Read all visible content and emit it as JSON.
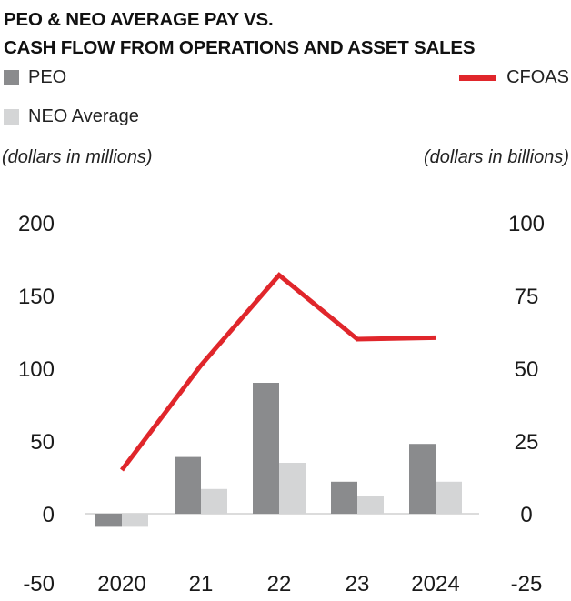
{
  "chart_data": {
    "type": "bar+line",
    "title_lines": [
      "PEO & NEO AVERAGE PAY VS.",
      "CASH FLOW FROM OPERATIONS AND ASSET SALES"
    ],
    "left_unit": "(dollars in millions)",
    "right_unit": "(dollars in billions)",
    "categories": [
      "2020",
      "21",
      "22",
      "23",
      "2024"
    ],
    "left_axis": {
      "min": -50,
      "max": 200,
      "ticks": [
        200,
        150,
        100,
        50,
        0,
        -50
      ]
    },
    "right_axis": {
      "min": -25,
      "max": 100,
      "ticks": [
        100,
        75,
        50,
        25,
        0,
        -25
      ]
    },
    "series": [
      {
        "name": "PEO",
        "type": "bar",
        "axis": "left",
        "color": "#8a8b8d",
        "values": [
          -9,
          39,
          90,
          22,
          48
        ]
      },
      {
        "name": "NEO Average",
        "type": "bar",
        "axis": "left",
        "color": "#d4d5d6",
        "values": [
          -9,
          17,
          35,
          12,
          22
        ]
      },
      {
        "name": "CFOAS",
        "type": "line",
        "axis": "right",
        "color": "#e0262b",
        "values": [
          15,
          51,
          82,
          60,
          60.5
        ]
      }
    ]
  }
}
